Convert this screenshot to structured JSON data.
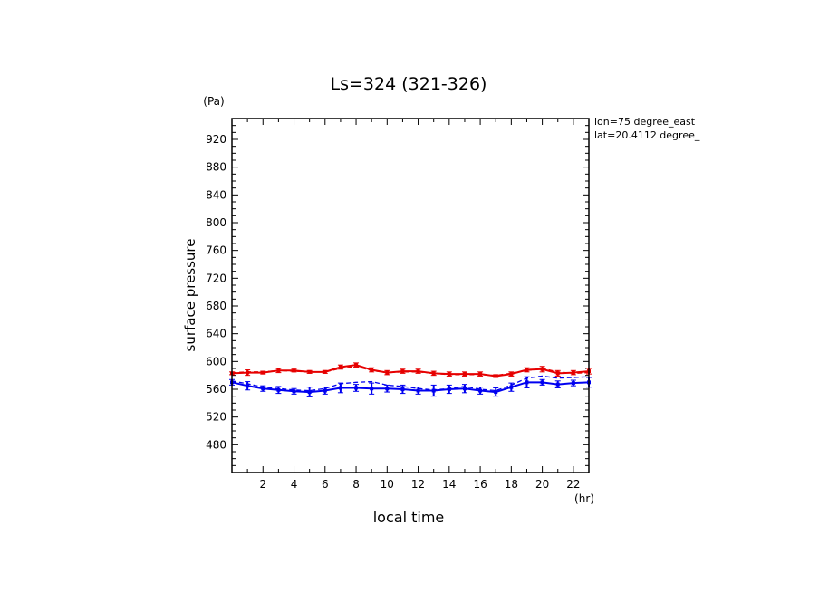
{
  "chart_data": {
    "type": "line",
    "title": "Ls=324 (321-326)",
    "xlabel": "local time",
    "ylabel": "surface pressure",
    "x_unit": "(hr)",
    "y_unit": "(Pa)",
    "annotations": [
      "lon=75 degree_east",
      "lat=20.4112 degree_"
    ],
    "xlim": [
      0,
      23
    ],
    "ylim": [
      440,
      950
    ],
    "xticks": [
      2,
      4,
      6,
      8,
      10,
      12,
      14,
      16,
      18,
      20,
      22
    ],
    "yticks": [
      480,
      520,
      560,
      600,
      640,
      680,
      720,
      760,
      800,
      840,
      880,
      920
    ],
    "grid": false,
    "series": [
      {
        "color": "#e60000",
        "style": "solid",
        "x": [
          0,
          1,
          2,
          3,
          4,
          5,
          6,
          7,
          8,
          9,
          10,
          11,
          12,
          13,
          14,
          15,
          16,
          17,
          18,
          19,
          20,
          21,
          22,
          23
        ],
        "y": [
          583,
          584,
          584,
          587,
          587,
          585,
          585,
          592,
          595,
          588,
          584,
          586,
          586,
          583,
          582,
          582,
          582,
          579,
          582,
          588,
          589,
          583,
          584,
          586
        ],
        "errors": [
          2,
          4,
          2,
          3,
          2,
          2,
          2,
          3,
          3,
          3,
          3,
          3,
          3,
          3,
          3,
          3,
          3,
          2,
          3,
          3,
          4,
          4,
          3,
          4
        ]
      },
      {
        "color": "#e60000",
        "style": "dashed",
        "x": [
          0,
          1,
          2,
          3,
          4,
          5,
          6,
          7,
          8,
          9,
          10,
          11,
          12,
          13,
          14,
          15,
          16,
          17,
          18,
          19,
          20,
          21,
          22,
          23
        ],
        "y": [
          584,
          585,
          585,
          587,
          586,
          585,
          585,
          590,
          593,
          587,
          584,
          585,
          585,
          583,
          581,
          581,
          581,
          580,
          583,
          587,
          590,
          585,
          583,
          584
        ],
        "errors": [
          0,
          0,
          0,
          0,
          0,
          0,
          0,
          0,
          0,
          0,
          0,
          0,
          0,
          0,
          0,
          0,
          0,
          0,
          0,
          0,
          0,
          0,
          0,
          0
        ]
      },
      {
        "color": "#0000f0",
        "style": "solid",
        "x": [
          0,
          1,
          2,
          3,
          4,
          5,
          6,
          7,
          8,
          9,
          10,
          11,
          12,
          13,
          14,
          15,
          16,
          17,
          18,
          19,
          20,
          21,
          22,
          23
        ],
        "y": [
          570,
          565,
          561,
          559,
          557,
          556,
          558,
          562,
          562,
          561,
          561,
          560,
          558,
          558,
          560,
          561,
          558,
          556,
          563,
          570,
          570,
          567,
          569,
          570
        ],
        "errors": [
          4,
          6,
          4,
          5,
          4,
          7,
          5,
          7,
          5,
          8,
          5,
          6,
          5,
          8,
          6,
          6,
          5,
          6,
          6,
          8,
          4,
          5,
          4,
          7
        ]
      },
      {
        "color": "#0000f0",
        "style": "dashed",
        "x": [
          0,
          1,
          2,
          3,
          4,
          5,
          6,
          7,
          8,
          9,
          10,
          11,
          12,
          13,
          14,
          15,
          16,
          17,
          18,
          19,
          20,
          21,
          22,
          23
        ],
        "y": [
          572,
          568,
          563,
          561,
          559,
          558,
          561,
          568,
          570,
          571,
          566,
          564,
          561,
          559,
          561,
          564,
          560,
          558,
          566,
          576,
          579,
          576,
          577,
          578
        ],
        "errors": [
          0,
          0,
          0,
          0,
          0,
          0,
          0,
          0,
          0,
          0,
          0,
          0,
          0,
          0,
          0,
          0,
          0,
          0,
          0,
          0,
          0,
          0,
          0,
          0
        ]
      }
    ]
  }
}
